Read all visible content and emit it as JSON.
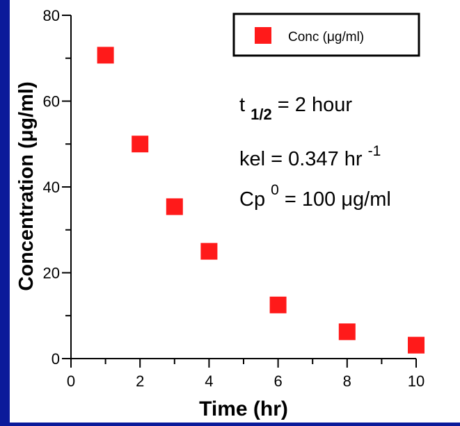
{
  "chart_data": {
    "type": "scatter",
    "title": "",
    "xlabel": "Time (hr)",
    "ylabel": "Concentration (μg/ml)",
    "xlim": [
      0,
      10
    ],
    "ylim": [
      0,
      80
    ],
    "x_ticks": [
      "0",
      "2",
      "4",
      "6",
      "8",
      "10"
    ],
    "y_ticks": [
      "0",
      "20",
      "40",
      "60",
      "80"
    ],
    "grid": false,
    "legend": {
      "position": "top-right",
      "entries": [
        "Conc (μg/ml)"
      ]
    },
    "series": [
      {
        "name": "Conc (μg/ml)",
        "color": "#ff1a1a",
        "marker": "square",
        "x": [
          1,
          2,
          3,
          4,
          6,
          8,
          10
        ],
        "y": [
          70.7,
          50,
          35.4,
          25,
          12.5,
          6.25,
          3.13
        ]
      }
    ],
    "annotations": {
      "half_life": {
        "base": "t",
        "sub": "1/2",
        "rest": " = 2 hour"
      },
      "kel": {
        "base": "kel = 0.347 hr",
        "sup": "-1"
      },
      "cp0": {
        "base": "Cp",
        "sup": "0",
        "rest": " = 100 μg/ml"
      }
    }
  },
  "colors": {
    "background": "#0b1a9a",
    "panel": "#ffffff",
    "marker": "#ff1a1a"
  }
}
